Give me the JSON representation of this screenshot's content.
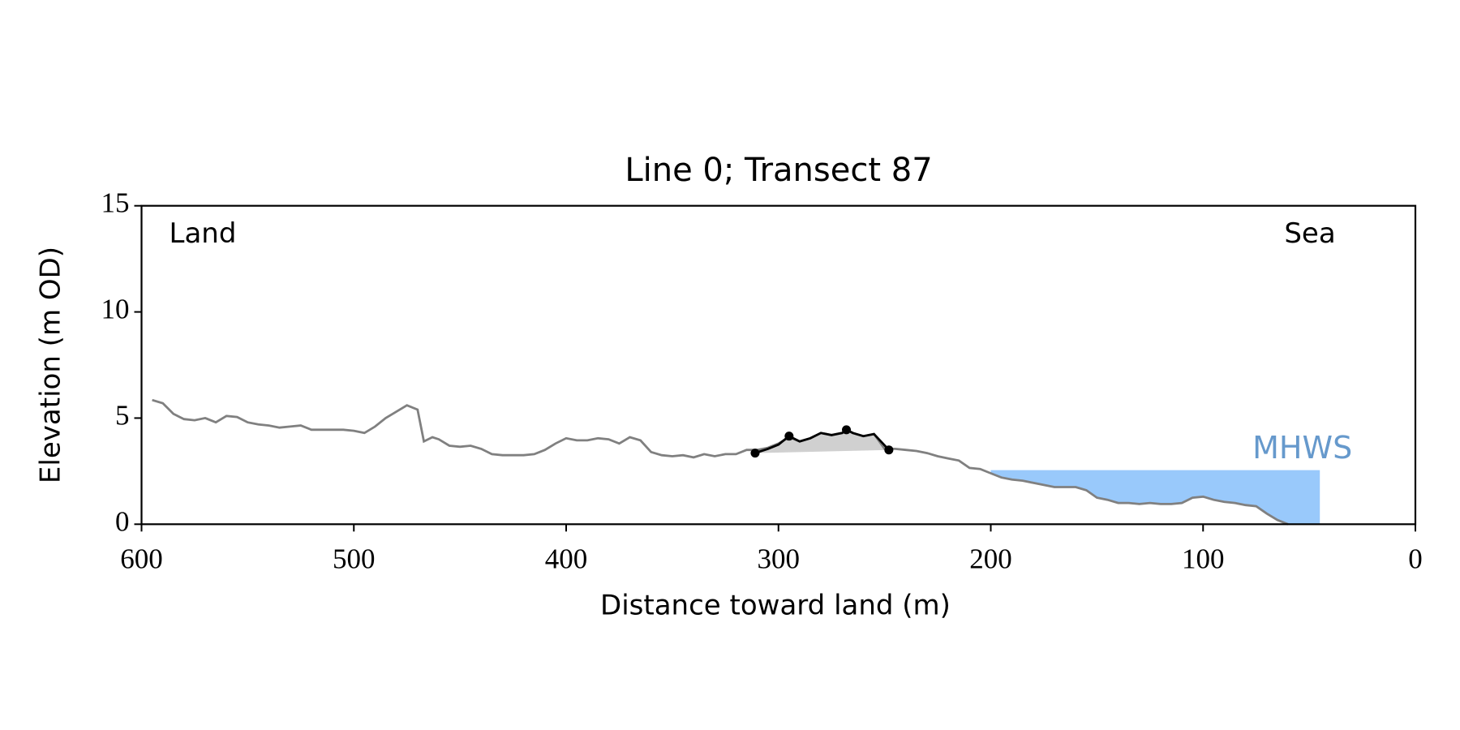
{
  "chart_data": {
    "type": "line",
    "title": "Line 0; Transect 87",
    "xlabel": "Distance toward land (m)",
    "ylabel": "Elevation (m OD)",
    "xlim": [
      600,
      0
    ],
    "xticks": [
      600,
      500,
      400,
      300,
      200,
      100,
      0
    ],
    "ylim": [
      0,
      15
    ],
    "yticks": [
      0,
      5,
      10,
      15
    ],
    "annotations": [
      "Land",
      "Sea"
    ],
    "profile": {
      "color": "#808080",
      "x": [
        595,
        590,
        585,
        580,
        575,
        570,
        565,
        560,
        555,
        550,
        545,
        540,
        535,
        530,
        525,
        520,
        515,
        510,
        505,
        500,
        495,
        490,
        485,
        480,
        475,
        470,
        467,
        463,
        460,
        455,
        450,
        445,
        440,
        435,
        430,
        425,
        420,
        415,
        410,
        405,
        400,
        395,
        390,
        385,
        380,
        375,
        370,
        365,
        360,
        355,
        350,
        345,
        340,
        335,
        330,
        325,
        320,
        315,
        310,
        305,
        300,
        295,
        290,
        285,
        280,
        275,
        270,
        268,
        265,
        260,
        255,
        250,
        245,
        240,
        235,
        230,
        225,
        220,
        215,
        210,
        205,
        200,
        195,
        190,
        185,
        180,
        175,
        170,
        165,
        160,
        155,
        150,
        145,
        140,
        135,
        130,
        125,
        120,
        115,
        110,
        105,
        100,
        95,
        90,
        85,
        80,
        75,
        70,
        65,
        60
      ],
      "values": [
        5.85,
        5.7,
        5.2,
        4.95,
        4.9,
        5.0,
        4.8,
        5.1,
        5.05,
        4.8,
        4.7,
        4.65,
        4.55,
        4.6,
        4.65,
        4.45,
        4.45,
        4.45,
        4.45,
        4.4,
        4.3,
        4.6,
        5.0,
        5.3,
        5.6,
        5.4,
        3.9,
        4.1,
        4.0,
        3.7,
        3.65,
        3.7,
        3.55,
        3.3,
        3.25,
        3.25,
        3.25,
        3.3,
        3.5,
        3.8,
        4.05,
        3.95,
        3.95,
        4.05,
        4.0,
        3.8,
        4.1,
        3.95,
        3.4,
        3.25,
        3.2,
        3.25,
        3.15,
        3.3,
        3.2,
        3.3,
        3.3,
        3.5,
        3.5,
        3.6,
        3.8,
        4.1,
        3.9,
        4.05,
        4.3,
        4.2,
        4.3,
        4.45,
        4.3,
        4.15,
        4.25,
        3.55,
        3.55,
        3.5,
        3.45,
        3.35,
        3.2,
        3.1,
        3.0,
        2.65,
        2.6,
        2.4,
        2.2,
        2.1,
        2.05,
        1.95,
        1.85,
        1.75,
        1.75,
        1.75,
        1.6,
        1.25,
        1.15,
        1.0,
        1.0,
        0.95,
        1.0,
        0.95,
        0.95,
        1.0,
        1.25,
        1.3,
        1.15,
        1.05,
        1.0,
        0.9,
        0.85,
        0.5,
        0.2,
        0.0
      ]
    },
    "dune": {
      "color": "#000000",
      "fill": "#d0d0d0",
      "x": [
        311,
        305,
        300,
        295,
        290,
        285,
        280,
        275,
        270,
        268,
        265,
        260,
        255,
        248
      ],
      "values": [
        3.35,
        3.55,
        3.75,
        4.15,
        3.9,
        4.05,
        4.3,
        4.2,
        4.3,
        4.45,
        4.3,
        4.15,
        4.25,
        3.5
      ],
      "points_x": [
        311,
        295,
        268,
        248
      ],
      "points": [
        3.35,
        4.15,
        4.45,
        3.5
      ]
    },
    "mhws": {
      "label": "MHWS",
      "color": "#99c9fb",
      "label_color": "#6699cc",
      "level": 2.55,
      "x_start": 200,
      "x_end": 45
    }
  }
}
